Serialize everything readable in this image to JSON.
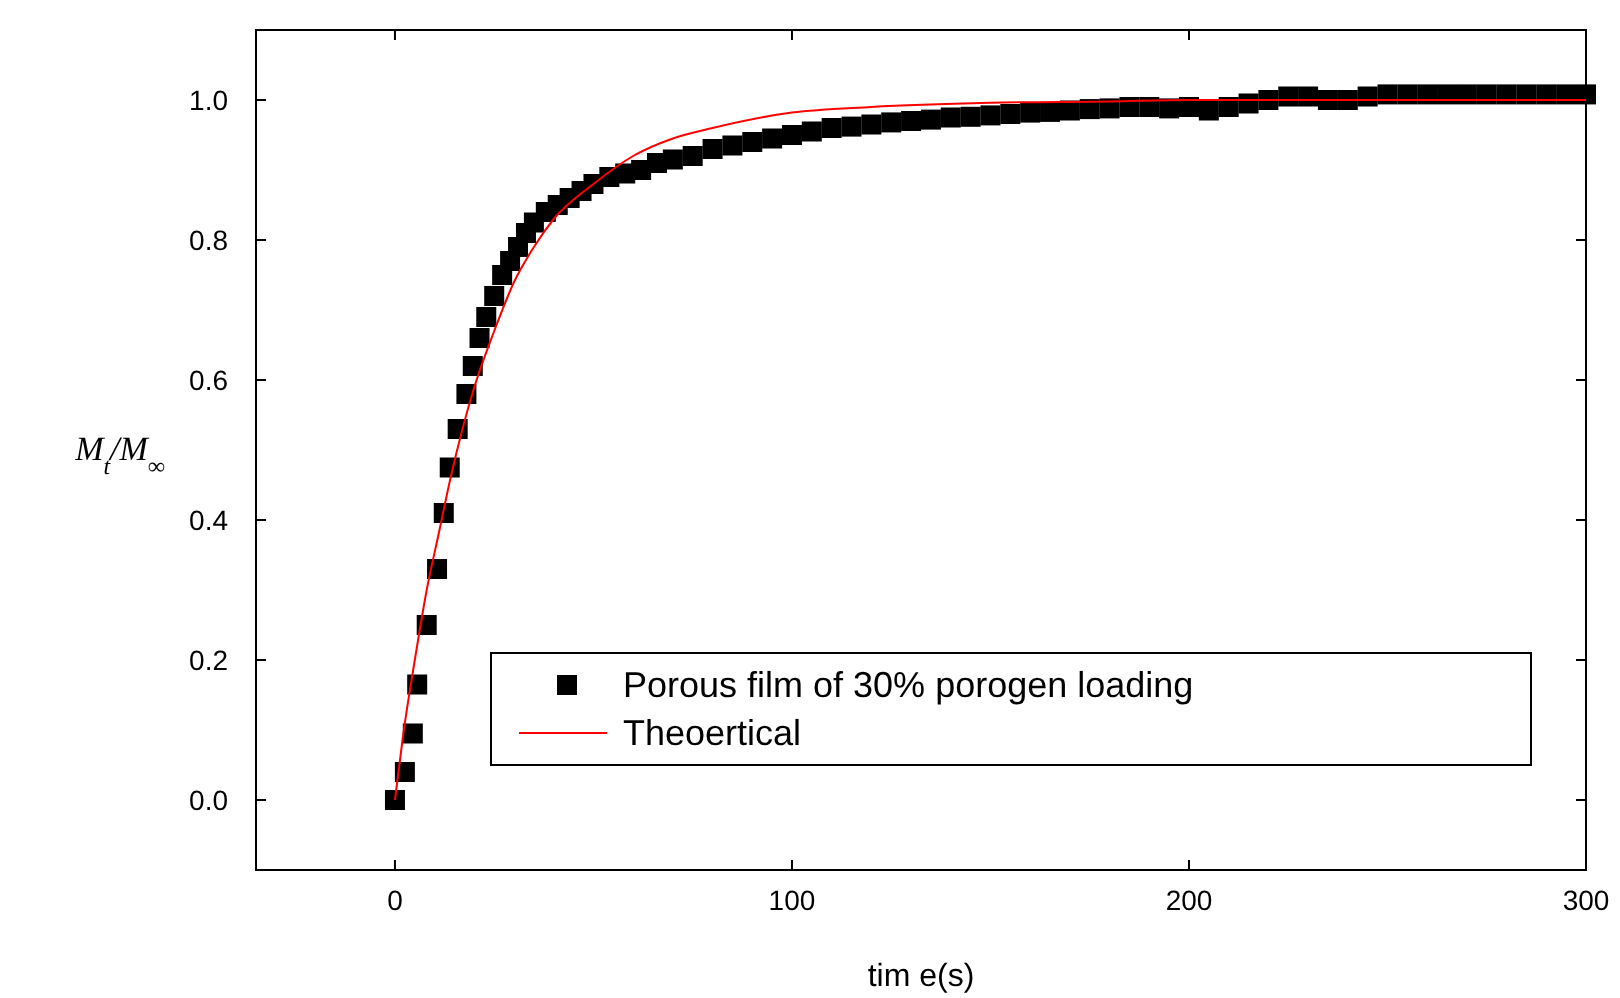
{
  "chart_data": {
    "type": "scatter",
    "xlabel": "tim e(s)",
    "ylabel": "M$_{t}$/M$_{∞}$",
    "xlim": [
      -35,
      300
    ],
    "ylim": [
      -0.1,
      1.1
    ],
    "xticks": [
      0,
      100,
      200,
      300
    ],
    "yticks": [
      {
        "value": 0,
        "label": "0.0"
      },
      0.2,
      0.4,
      0.6,
      0.8,
      {
        "value": 1,
        "label": "1.0"
      }
    ],
    "grid": false,
    "legend": "bottom",
    "series": [
      {
        "name": "Porous film of 30% porogen loading",
        "type": "scatter",
        "marker": "square",
        "color": "#000000",
        "x": [
          0,
          2.5,
          4.5,
          5.6,
          8,
          10.6,
          12.3,
          13.8,
          15.8,
          18,
          19.6,
          21.3,
          23,
          25,
          27,
          29,
          31,
          33,
          35,
          38,
          41,
          44,
          47,
          50,
          54,
          58,
          62,
          66,
          70,
          75,
          80,
          85,
          90,
          95,
          100,
          105,
          110,
          115,
          120,
          125,
          130,
          135,
          140,
          145,
          150,
          155,
          160,
          165,
          170,
          175,
          180,
          185,
          190,
          195,
          200,
          205,
          210,
          215,
          220,
          225,
          230,
          235,
          240,
          245,
          250,
          255,
          260,
          265,
          270,
          275,
          280,
          285,
          290,
          295,
          300
        ],
        "values": [
          0,
          0.04,
          0.095,
          0.165,
          0.25,
          0.33,
          0.41,
          0.475,
          0.53,
          0.58,
          0.62,
          0.66,
          0.69,
          0.72,
          0.75,
          0.77,
          0.79,
          0.81,
          0.825,
          0.84,
          0.85,
          0.86,
          0.87,
          0.88,
          0.89,
          0.895,
          0.9,
          0.91,
          0.915,
          0.92,
          0.93,
          0.935,
          0.94,
          0.945,
          0.95,
          0.955,
          0.96,
          0.962,
          0.965,
          0.968,
          0.97,
          0.972,
          0.975,
          0.976,
          0.978,
          0.98,
          0.982,
          0.983,
          0.985,
          0.987,
          0.988,
          0.99,
          0.99,
          0.988,
          0.99,
          0.985,
          0.99,
          0.995,
          1.0,
          1.005,
          1.005,
          1.0,
          1.0,
          1.005,
          1.008,
          1.008,
          1.008,
          1.008,
          1.008,
          1.008,
          1.008,
          1.008,
          1.008,
          1.008,
          1.008
        ]
      },
      {
        "name": "Theoertical",
        "type": "line",
        "line_style": "solid",
        "color": "#ff0000",
        "x": [
          0,
          2,
          5,
          8,
          11,
          14,
          17,
          20,
          25,
          30,
          35,
          40,
          50,
          60,
          70,
          80,
          100,
          120,
          150,
          180,
          200,
          250,
          300
        ],
        "values": [
          0,
          0.09,
          0.2,
          0.3,
          0.38,
          0.46,
          0.53,
          0.59,
          0.67,
          0.74,
          0.79,
          0.83,
          0.88,
          0.92,
          0.945,
          0.96,
          0.982,
          0.99,
          0.996,
          0.998,
          1.0,
          1.0,
          1.0
        ]
      }
    ]
  }
}
